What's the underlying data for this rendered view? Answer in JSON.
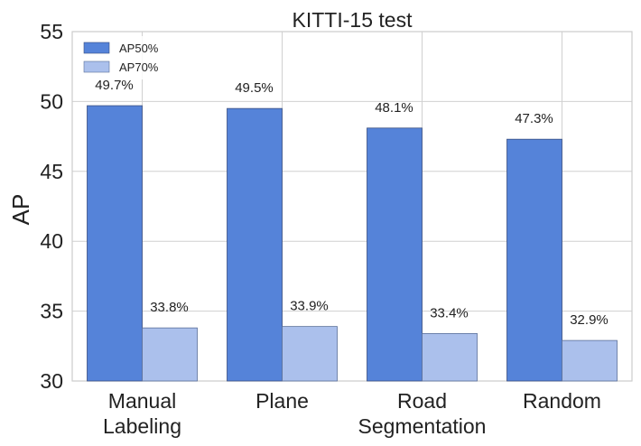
{
  "chart_data": {
    "type": "bar",
    "title": "KITTI-15 test",
    "xlabel": "",
    "ylabel": "AP",
    "ylim": [
      30,
      55
    ],
    "yticks": [
      30,
      35,
      40,
      45,
      50,
      55
    ],
    "grid": true,
    "legend_position": "top-left",
    "categories": [
      [
        "Manual",
        "Labeling"
      ],
      [
        "Plane"
      ],
      [
        "Road",
        "Segmentation"
      ],
      [
        "Random"
      ]
    ],
    "series": [
      {
        "name": "AP50%",
        "values": [
          49.7,
          49.5,
          48.1,
          47.3
        ],
        "labels": [
          "49.7%",
          "49.5%",
          "48.1%",
          "47.3%"
        ],
        "color": "#5583d9"
      },
      {
        "name": "AP70%",
        "values": [
          33.8,
          33.9,
          33.4,
          32.9
        ],
        "labels": [
          "33.8%",
          "33.9%",
          "33.4%",
          "32.9%"
        ],
        "color": "#abc0ec"
      }
    ]
  }
}
